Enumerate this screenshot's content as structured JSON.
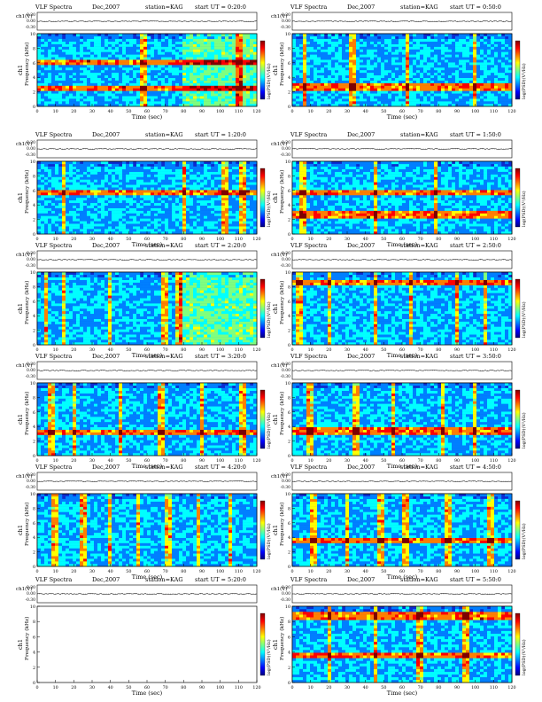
{
  "page": {
    "background": "#ffffff"
  },
  "chart_data": {
    "type": "heatmap",
    "common": {
      "title_left": "VLF Spectra",
      "date": "Dec,2007",
      "station": "station=KAG",
      "start_prefix": "start UT =",
      "top_ylabel": "ch1(V)",
      "top_yticks": [
        "0.30",
        "0.00",
        "-0.30"
      ],
      "ylabel_main": "ch1",
      "ylabel_sub": "Frequency (kHz)",
      "yticks": [
        "10",
        "8",
        "6",
        "4",
        "2",
        "0"
      ],
      "xlabel": "Time (sec)",
      "xticks": [
        "0",
        "10",
        "20",
        "30",
        "40",
        "50",
        "60",
        "70",
        "80",
        "90",
        "100",
        "110",
        "120"
      ],
      "xlim": [
        0,
        120
      ],
      "ylim": [
        0,
        10
      ],
      "colorbar_label": "log(PSD)(V²/Hz)",
      "colormap": [
        "#00007f",
        "#0000ff",
        "#007fff",
        "#00ffff",
        "#7fff7f",
        "#ffff00",
        "#ff7f00",
        "#ff0000",
        "#7f0000"
      ]
    },
    "panels": [
      {
        "start": "0:20:0",
        "empty": false,
        "bands": [
          6.0,
          2.5
        ],
        "spikes": [
          58,
          110
        ],
        "bright_from": 80
      },
      {
        "start": "0:50:0",
        "empty": false,
        "bands": [
          2.6
        ],
        "spikes": [
          7,
          33,
          63,
          100
        ],
        "bright_from": null
      },
      {
        "start": "1:20:0",
        "empty": false,
        "bands": [
          5.8
        ],
        "spikes": [
          14,
          80,
          103,
          112
        ],
        "bright_from": null
      },
      {
        "start": "1:50:0",
        "empty": false,
        "bands": [
          5.8,
          2.7
        ],
        "spikes": [
          6,
          45,
          78
        ],
        "bright_from": null
      },
      {
        "start": "2:20:0",
        "empty": false,
        "bands": [],
        "spikes": [
          5,
          15,
          40,
          70,
          77
        ],
        "bright_from": 77
      },
      {
        "start": "2:50:0",
        "empty": false,
        "bands": [
          8.5
        ],
        "spikes": [
          4,
          20,
          45,
          65,
          90,
          105
        ],
        "bright_from": null
      },
      {
        "start": "3:20:0",
        "empty": false,
        "bands": [
          3.2
        ],
        "spikes": [
          8,
          20,
          45,
          68,
          90,
          112
        ],
        "bright_from": null
      },
      {
        "start": "3:50:0",
        "empty": false,
        "bands": [
          3.4
        ],
        "spikes": [
          10,
          35,
          55,
          82,
          100
        ],
        "bright_from": null
      },
      {
        "start": "4:20:0",
        "empty": false,
        "bands": [],
        "spikes": [
          10,
          25,
          40,
          55,
          72,
          88,
          105
        ],
        "bright_from": null
      },
      {
        "start": "4:50:0",
        "empty": false,
        "bands": [
          3.5
        ],
        "spikes": [
          12,
          30,
          48,
          62,
          85,
          108
        ],
        "bright_from": null
      },
      {
        "start": "5:20:0",
        "empty": true,
        "bands": [],
        "spikes": [],
        "bright_from": null
      },
      {
        "start": "5:50:0",
        "empty": false,
        "bands": [
          8.8,
          3.5
        ],
        "spikes": [
          20,
          45,
          70,
          95
        ],
        "bright_from": null
      }
    ]
  }
}
